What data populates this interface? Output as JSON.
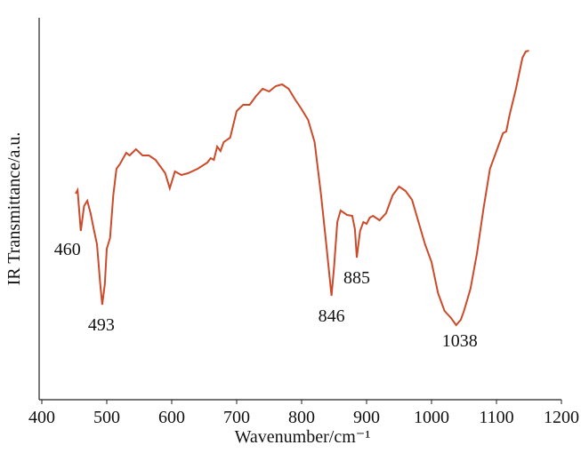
{
  "chart_data": {
    "type": "line",
    "xlabel": "Wavenumber/cm⁻¹",
    "ylabel": "IR Transmittance/a.u.",
    "xlim": [
      400,
      1200
    ],
    "xticks": [
      400,
      500,
      600,
      700,
      800,
      900,
      1000,
      1100,
      1200
    ],
    "ylim": [
      0,
      430
    ],
    "annotations": [
      "460",
      "493",
      "846",
      "885",
      "1038"
    ],
    "x": [
      452,
      455,
      460,
      465,
      470,
      475,
      480,
      485,
      490,
      493,
      497,
      500,
      505,
      510,
      515,
      520,
      530,
      535,
      545,
      555,
      565,
      575,
      585,
      590,
      597,
      605,
      615,
      625,
      640,
      655,
      660,
      665,
      670,
      675,
      680,
      690,
      700,
      710,
      720,
      730,
      740,
      750,
      760,
      770,
      780,
      790,
      800,
      810,
      820,
      830,
      838,
      846,
      850,
      855,
      860,
      870,
      878,
      882,
      885,
      890,
      895,
      900,
      905,
      910,
      920,
      930,
      940,
      950,
      960,
      970,
      980,
      990,
      1000,
      1010,
      1020,
      1030,
      1038,
      1045,
      1050,
      1060,
      1070,
      1080,
      1090,
      1100,
      1110,
      1115,
      1120,
      1130,
      1140,
      1145,
      1150
    ],
    "series": [
      {
        "color": "#cc4a2a",
        "values": [
          232,
          236,
          190,
          218,
          224,
          210,
          192,
          175,
          130,
          107,
          130,
          170,
          182,
          230,
          260,
          265,
          278,
          275,
          282,
          275,
          275,
          270,
          260,
          255,
          238,
          257,
          253,
          255,
          260,
          267,
          272,
          270,
          285,
          280,
          290,
          295,
          325,
          332,
          332,
          342,
          350,
          347,
          353,
          355,
          350,
          338,
          327,
          315,
          290,
          230,
          175,
          117,
          150,
          200,
          213,
          208,
          207,
          192,
          160,
          190,
          200,
          198,
          205,
          207,
          202,
          210,
          230,
          240,
          235,
          225,
          200,
          175,
          155,
          120,
          100,
          92,
          84,
          90,
          100,
          125,
          165,
          215,
          260,
          280,
          300,
          302,
          320,
          350,
          385,
          392,
          393
        ]
      }
    ]
  }
}
